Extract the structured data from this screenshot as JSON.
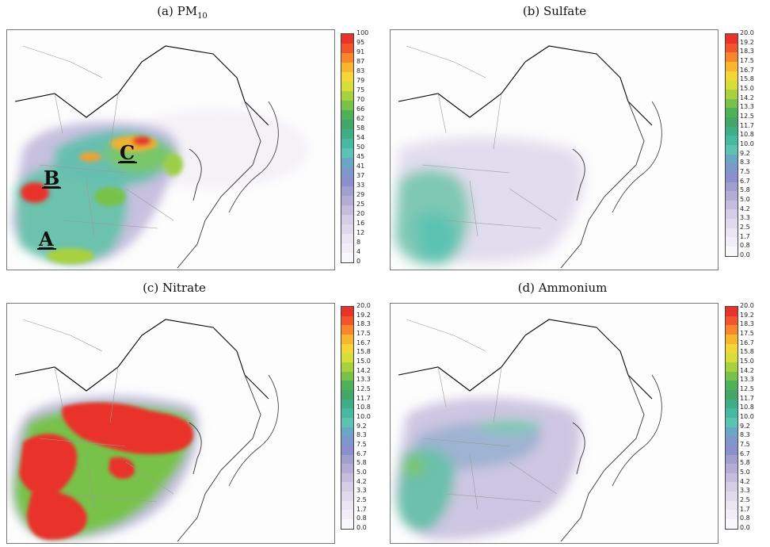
{
  "panels": [
    {
      "id": "pm10",
      "title_prefix": "(a) PM",
      "title_sub": "10",
      "colorbar_ticks": [
        "100",
        "95",
        "91",
        "87",
        "83",
        "79",
        "75",
        "70",
        "66",
        "62",
        "58",
        "54",
        "50",
        "45",
        "41",
        "37",
        "33",
        "29",
        "25",
        "20",
        "16",
        "12",
        "8",
        "4",
        "0"
      ],
      "region_labels": [
        "A",
        "B",
        "C"
      ]
    },
    {
      "id": "sulfate",
      "title_prefix": "(b) Sulfate",
      "title_sub": "",
      "colorbar_ticks": [
        "20.0",
        "19.2",
        "18.3",
        "17.5",
        "16.7",
        "15.8",
        "15.0",
        "14.2",
        "13.3",
        "12.5",
        "11.7",
        "10.8",
        "10.0",
        "9.2",
        "8.3",
        "7.5",
        "6.7",
        "5.8",
        "5.0",
        "4.2",
        "3.3",
        "2.5",
        "1.7",
        "0.8",
        "0.0"
      ],
      "region_labels": []
    },
    {
      "id": "nitrate",
      "title_prefix": "(c) Nitrate",
      "title_sub": "",
      "colorbar_ticks": [
        "20.0",
        "19.2",
        "18.3",
        "17.5",
        "16.7",
        "15.8",
        "15.0",
        "14.2",
        "13.3",
        "12.5",
        "11.7",
        "10.8",
        "10.0",
        "9.2",
        "8.3",
        "7.5",
        "6.7",
        "5.8",
        "5.0",
        "4.2",
        "3.3",
        "2.5",
        "1.7",
        "0.8",
        "0.0"
      ],
      "region_labels": []
    },
    {
      "id": "ammonium",
      "title_prefix": "(d) Ammonium",
      "title_sub": "",
      "colorbar_ticks": [
        "20.0",
        "19.2",
        "18.3",
        "17.5",
        "16.7",
        "15.8",
        "15.0",
        "14.2",
        "13.3",
        "12.5",
        "11.7",
        "10.8",
        "10.0",
        "9.2",
        "8.3",
        "7.5",
        "6.7",
        "5.8",
        "5.0",
        "4.2",
        "3.3",
        "2.5",
        "1.7",
        "0.8",
        "0.0"
      ],
      "region_labels": []
    }
  ],
  "colorscale": [
    "#e8332b",
    "#f2552c",
    "#f7862c",
    "#f8b52f",
    "#f6d636",
    "#d7dd3a",
    "#a8d13e",
    "#78c24a",
    "#4fb05a",
    "#45a66a",
    "#3fae86",
    "#46b9a1",
    "#5cc3b3",
    "#6aa7c4",
    "#7f98cc",
    "#8b8fcd",
    "#a19ed0",
    "#b3acd6",
    "#c4bddd",
    "#d3cde5",
    "#dfd9ec",
    "#e9e5f2",
    "#f1eef7",
    "#f8f7fb"
  ],
  "colors": {
    "china_border": "#000000",
    "province_border": "#9a9a9a",
    "coast": "#333333"
  }
}
